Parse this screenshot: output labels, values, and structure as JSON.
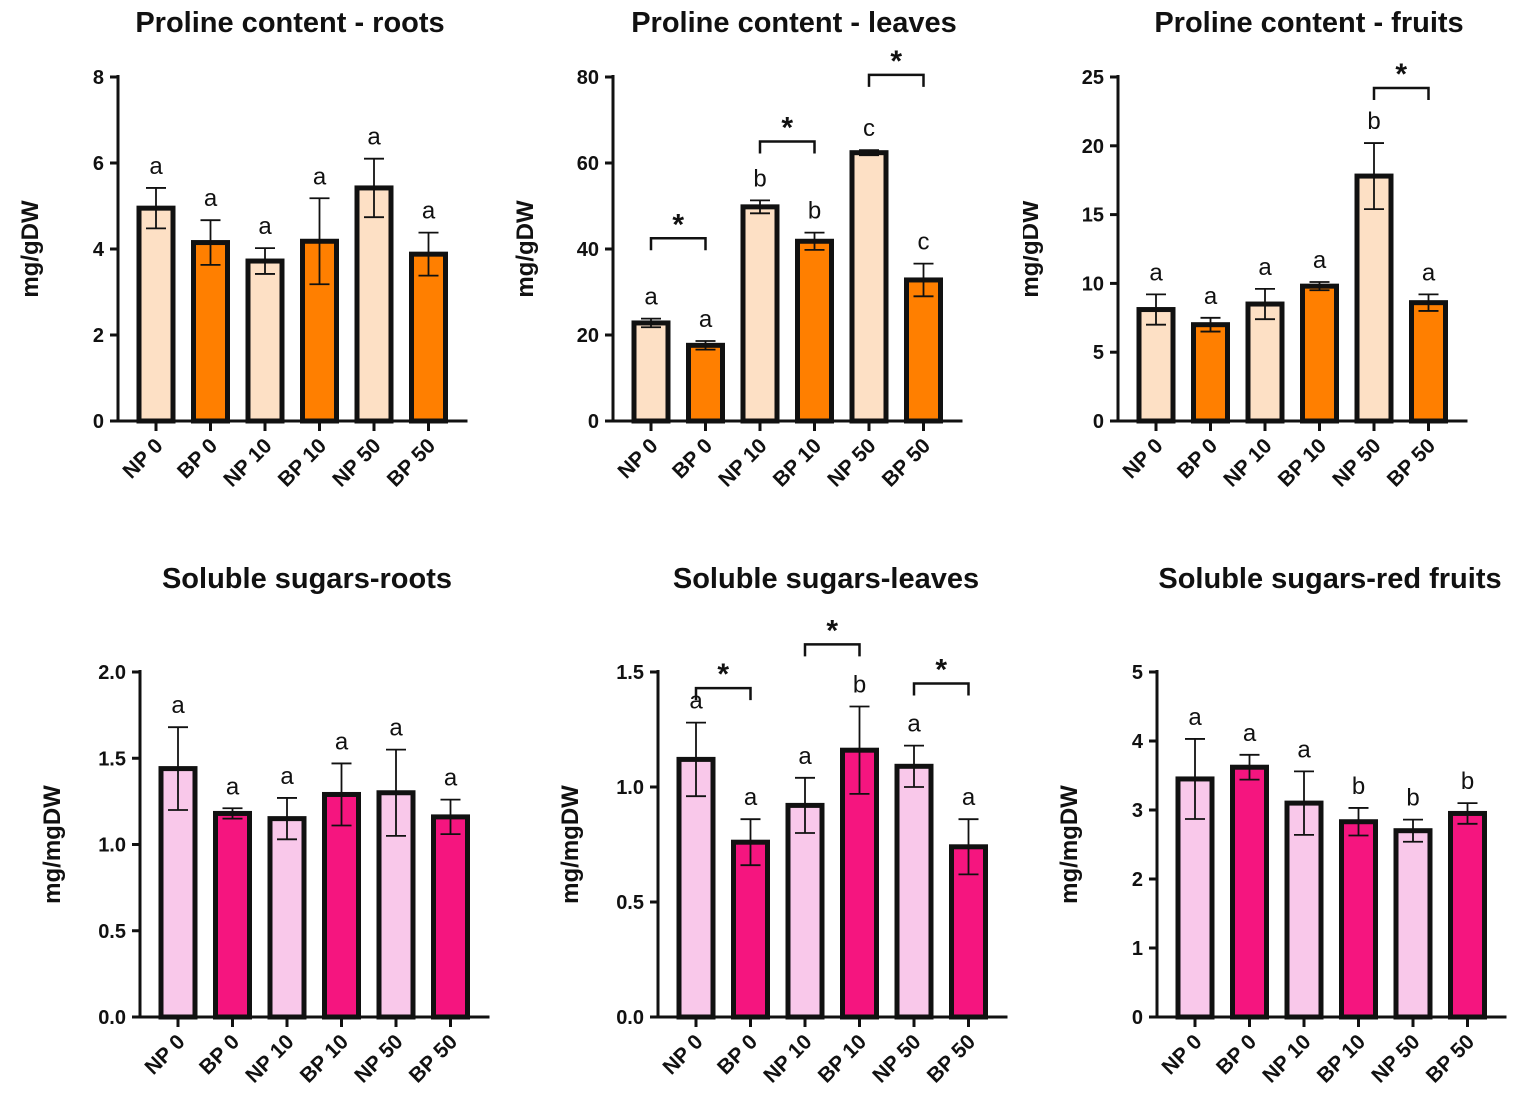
{
  "colors": {
    "np_proline": "#fde0c5",
    "bp_proline": "#ff7f00",
    "np_sugar": "#f9c8ea",
    "bp_sugar": "#f5157f",
    "stroke": "#111111"
  },
  "chart_data": [
    {
      "type": "bar",
      "title": "Proline content - roots",
      "ylabel": "mg/gDW",
      "ylim": [
        0,
        8
      ],
      "yticks": [
        0,
        2,
        4,
        6,
        8
      ],
      "categories": [
        "NP 0",
        "BP 0",
        "NP 10",
        "BP 10",
        "NP 50",
        "BP 50"
      ],
      "values": [
        4.95,
        4.15,
        3.72,
        4.18,
        5.42,
        3.88
      ],
      "errors": [
        0.47,
        0.52,
        0.3,
        1.0,
        0.68,
        0.5
      ],
      "letters": [
        "a",
        "a",
        "a",
        "a",
        "a",
        "a"
      ],
      "significance": [],
      "palette": "proline"
    },
    {
      "type": "bar",
      "title": "Proline content - leaves",
      "ylabel": "mg/gDW",
      "ylim": [
        0,
        80
      ],
      "yticks": [
        0,
        20,
        40,
        60,
        80
      ],
      "categories": [
        "NP 0",
        "BP 0",
        "NP 10",
        "BP 10",
        "NP 50",
        "BP 50"
      ],
      "values": [
        22.8,
        17.6,
        49.8,
        41.8,
        62.4,
        32.8
      ],
      "errors": [
        1.0,
        1.0,
        1.5,
        2.0,
        0.6,
        3.8
      ],
      "letters": [
        "a",
        "a",
        "b",
        "b",
        "c",
        "c"
      ],
      "significance": [
        {
          "pair": [
            0,
            1
          ],
          "level": 42.5,
          "label": "*"
        },
        {
          "pair": [
            2,
            3
          ],
          "level": 65,
          "label": "*"
        },
        {
          "pair": [
            4,
            5
          ],
          "level": 80.5,
          "label": "*"
        }
      ],
      "palette": "proline"
    },
    {
      "type": "bar",
      "title": "Proline content - fruits",
      "ylabel": "mg/gDW",
      "ylim": [
        0,
        25
      ],
      "yticks": [
        0,
        5,
        10,
        15,
        20,
        25
      ],
      "categories": [
        "NP 0",
        "BP 0",
        "NP 10",
        "BP 10",
        "NP 50",
        "BP 50"
      ],
      "values": [
        8.1,
        7.0,
        8.5,
        9.8,
        17.8,
        8.6
      ],
      "errors": [
        1.1,
        0.5,
        1.1,
        0.3,
        2.4,
        0.6
      ],
      "letters": [
        "a",
        "a",
        "a",
        "a",
        "b",
        "a"
      ],
      "significance": [
        {
          "pair": [
            4,
            5
          ],
          "level": 24.2,
          "label": "*"
        }
      ],
      "palette": "proline"
    },
    {
      "type": "bar",
      "title": "Soluble sugars-roots",
      "ylabel": "mg/mgDW",
      "ylim": [
        0,
        2
      ],
      "yticks": [
        "0.0",
        "0.5",
        "1.0",
        "1.5",
        "2.0"
      ],
      "categories": [
        "NP 0",
        "BP 0",
        "NP 10",
        "BP 10",
        "NP 50",
        "BP 50"
      ],
      "values": [
        1.44,
        1.18,
        1.15,
        1.29,
        1.3,
        1.16
      ],
      "errors": [
        0.24,
        0.03,
        0.12,
        0.18,
        0.25,
        0.1
      ],
      "letters": [
        "a",
        "a",
        "a",
        "a",
        "a",
        "a"
      ],
      "significance": [],
      "palette": "sugar"
    },
    {
      "type": "bar",
      "title": "Soluble sugars-leaves",
      "ylabel": "mg/mgDW",
      "ylim": [
        0,
        1.5
      ],
      "yticks": [
        "0.0",
        "0.5",
        "1.0",
        "1.5"
      ],
      "categories": [
        "NP 0",
        "BP 0",
        "NP 10",
        "BP 10",
        "NP 50",
        "BP 50"
      ],
      "values": [
        1.12,
        0.76,
        0.92,
        1.16,
        1.09,
        0.74
      ],
      "errors": [
        0.16,
        0.1,
        0.12,
        0.19,
        0.09,
        0.12
      ],
      "letters": [
        "a",
        "a",
        "a",
        "b",
        "a",
        "a"
      ],
      "significance": [
        {
          "pair": [
            0,
            1
          ],
          "level": 1.43,
          "label": "*"
        },
        {
          "pair": [
            2,
            3
          ],
          "level": 1.62,
          "label": "*"
        },
        {
          "pair": [
            4,
            5
          ],
          "level": 1.45,
          "label": "*"
        }
      ],
      "palette": "sugar"
    },
    {
      "type": "bar",
      "title": "Soluble sugars-red fruits",
      "ylabel": "mg/mgDW",
      "ylim": [
        0,
        5
      ],
      "yticks": [
        0,
        1,
        2,
        3,
        4,
        5
      ],
      "categories": [
        "NP 0",
        "BP 0",
        "NP 10",
        "BP 10",
        "NP 50",
        "BP 50"
      ],
      "values": [
        3.45,
        3.62,
        3.1,
        2.83,
        2.7,
        2.95
      ],
      "errors": [
        0.58,
        0.18,
        0.46,
        0.2,
        0.16,
        0.15
      ],
      "letters": [
        "a",
        "a",
        "a",
        "b",
        "b",
        "b"
      ],
      "significance": [],
      "palette": "sugar"
    }
  ]
}
